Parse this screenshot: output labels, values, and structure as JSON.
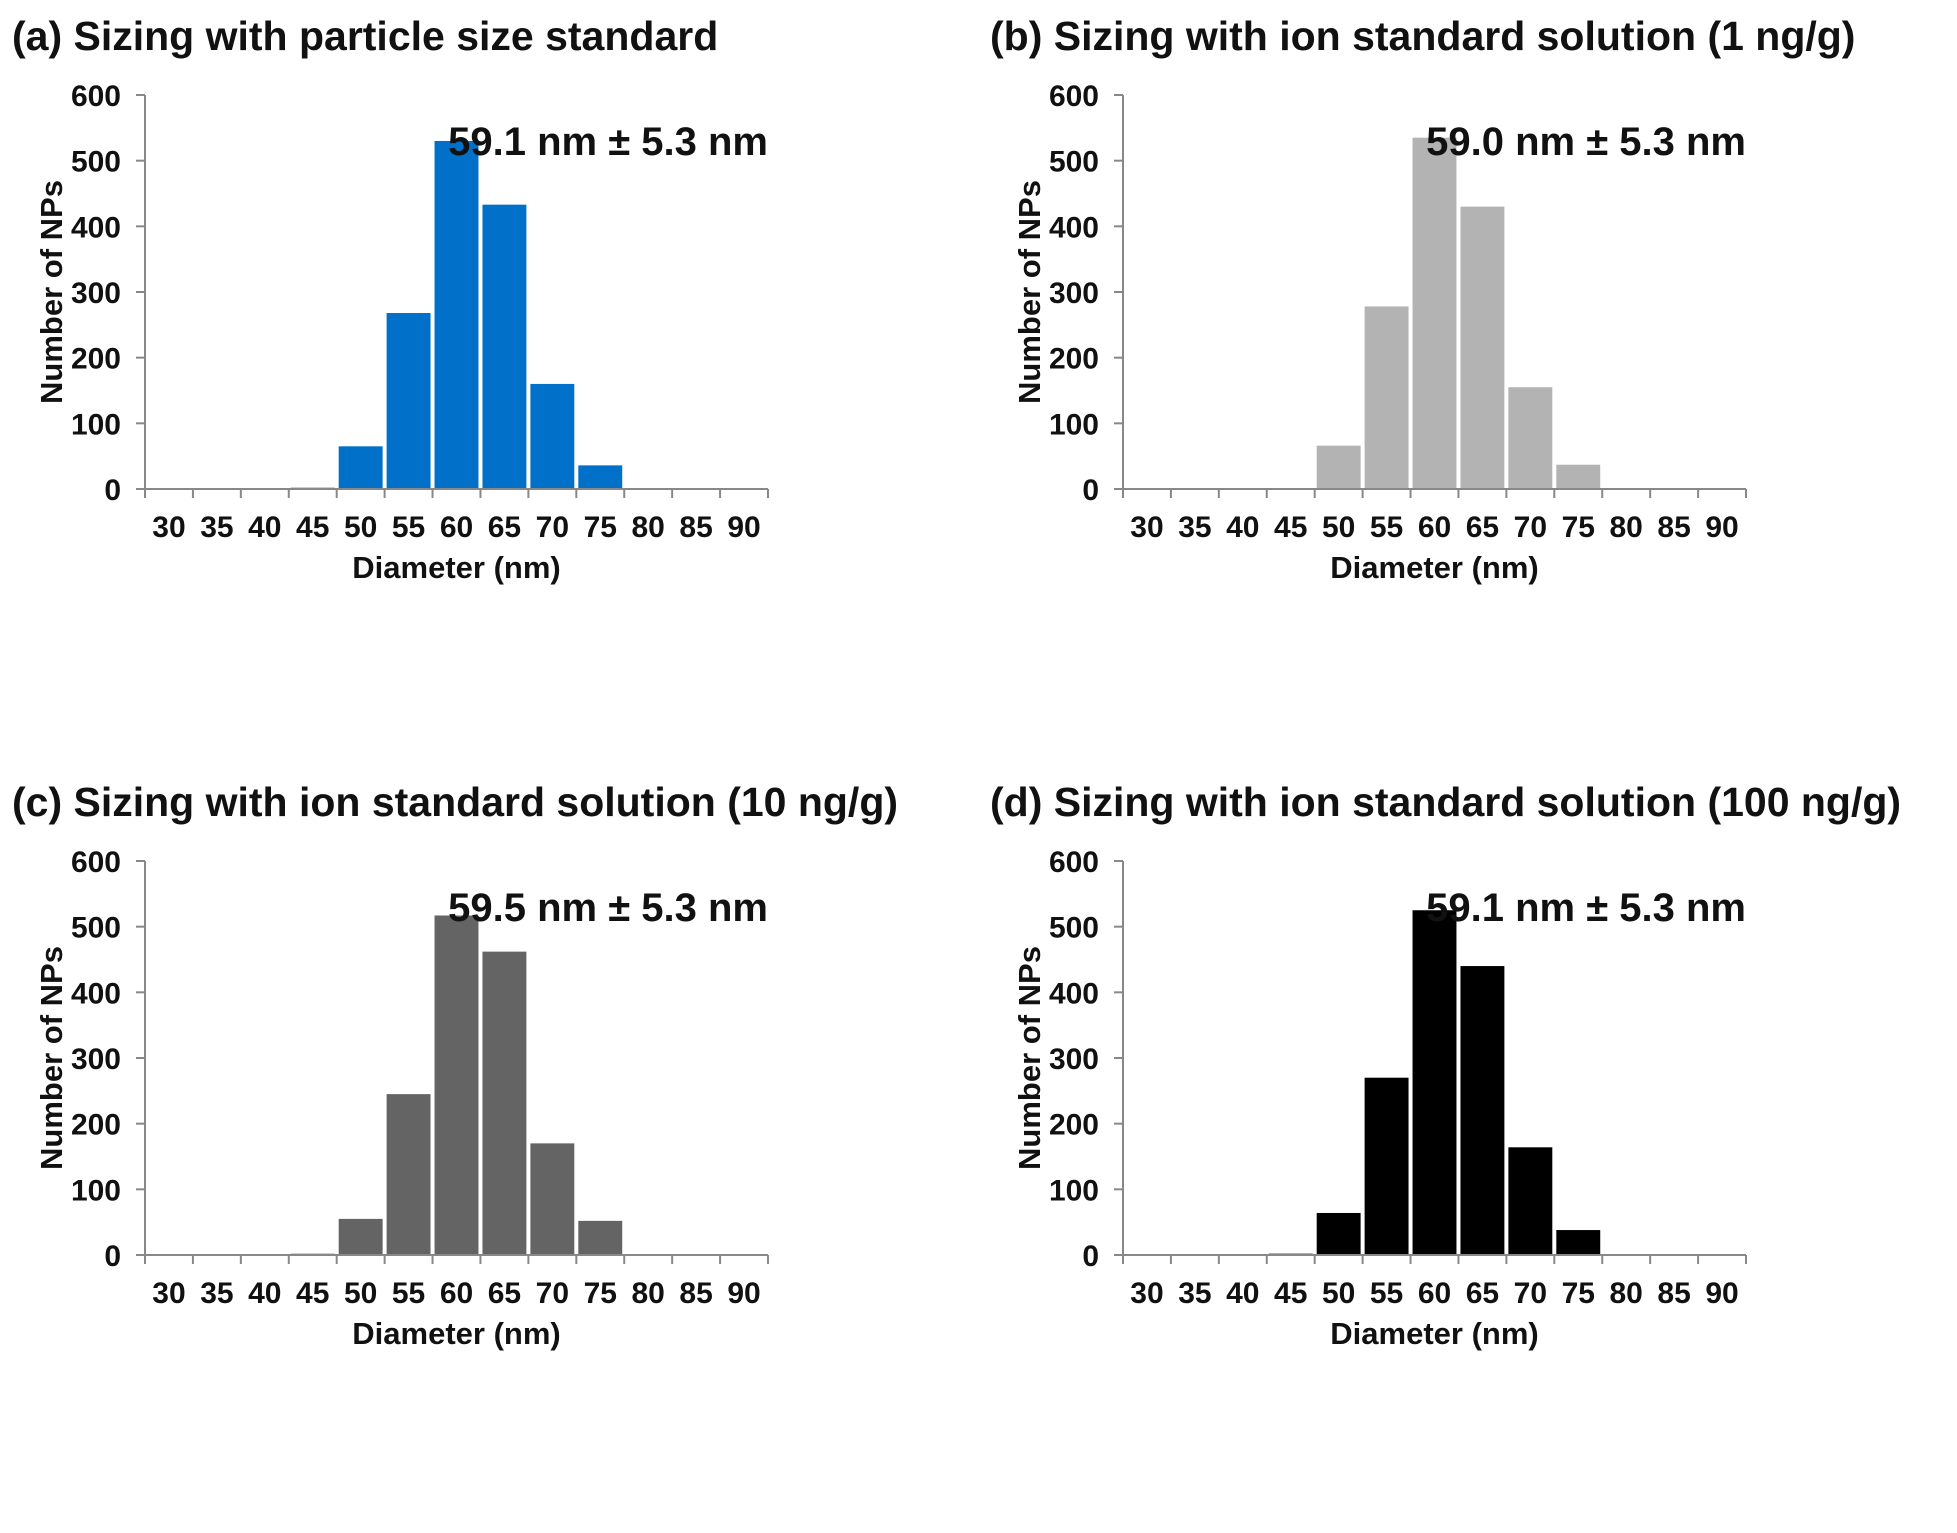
{
  "chart_data": [
    {
      "type": "bar",
      "title": "(a) Sizing with particle size standard",
      "xlabel": "Diameter (nm)",
      "ylabel": "Number of NPs",
      "categories": [
        "30",
        "35",
        "40",
        "45",
        "50",
        "55",
        "60",
        "65",
        "70",
        "75",
        "80",
        "85",
        "90"
      ],
      "values": [
        0,
        0,
        0,
        2,
        65,
        268,
        530,
        433,
        160,
        36,
        0,
        0,
        0
      ],
      "ylim": [
        0,
        600
      ],
      "yticks": [
        "0",
        "100",
        "200",
        "300",
        "400",
        "500",
        "600"
      ],
      "annotation": "59.1 nm ± 5.3 nm",
      "color": "#0070C8",
      "grid": false
    },
    {
      "type": "bar",
      "title": "(b) Sizing with ion standard solution (1 ng/g)",
      "xlabel": "Diameter (nm)",
      "ylabel": "Number of NPs",
      "categories": [
        "30",
        "35",
        "40",
        "45",
        "50",
        "55",
        "60",
        "65",
        "70",
        "75",
        "80",
        "85",
        "90"
      ],
      "values": [
        0,
        0,
        0,
        1,
        66,
        278,
        535,
        430,
        155,
        37,
        0,
        0,
        0
      ],
      "ylim": [
        0,
        600
      ],
      "yticks": [
        "0",
        "100",
        "200",
        "300",
        "400",
        "500",
        "600"
      ],
      "annotation": "59.0 nm ± 5.3 nm",
      "color": "#B3B3B3",
      "grid": false
    },
    {
      "type": "bar",
      "title": "(c) Sizing with ion standard solution (10 ng/g)",
      "xlabel": "Diameter (nm)",
      "ylabel": "Number of NPs",
      "categories": [
        "30",
        "35",
        "40",
        "45",
        "50",
        "55",
        "60",
        "65",
        "70",
        "75",
        "80",
        "85",
        "90"
      ],
      "values": [
        0,
        0,
        0,
        2,
        55,
        245,
        517,
        462,
        170,
        52,
        0,
        0,
        0
      ],
      "ylim": [
        0,
        600
      ],
      "yticks": [
        "0",
        "100",
        "200",
        "300",
        "400",
        "500",
        "600"
      ],
      "annotation": "59.5 nm ± 5.3 nm",
      "color": "#646464",
      "grid": false
    },
    {
      "type": "bar",
      "title": "(d) Sizing with ion standard solution (100 ng/g)",
      "xlabel": "Diameter (nm)",
      "ylabel": "Number of NPs",
      "categories": [
        "30",
        "35",
        "40",
        "45",
        "50",
        "55",
        "60",
        "65",
        "70",
        "75",
        "80",
        "85",
        "90"
      ],
      "values": [
        0,
        0,
        0,
        2,
        64,
        270,
        525,
        440,
        164,
        38,
        0,
        0,
        0
      ],
      "ylim": [
        0,
        600
      ],
      "yticks": [
        "0",
        "100",
        "200",
        "300",
        "400",
        "500",
        "600"
      ],
      "annotation": "59.1 nm ± 5.3 nm",
      "color": "#000000",
      "grid": false
    }
  ]
}
